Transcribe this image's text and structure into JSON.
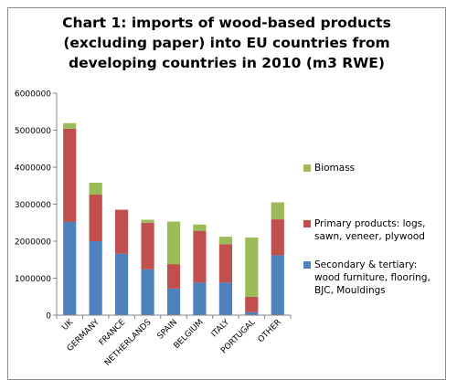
{
  "chart_data": {
    "type": "bar",
    "stacked": true,
    "title_lines": [
      "Chart 1: imports of wood-based products",
      "(excluding paper) into EU countries from",
      "developing countries in 2010 (m3 RWE)"
    ],
    "categories": [
      "UK",
      "GERMANY",
      "FRANCE",
      "NETHERLANDS",
      "SPAIN",
      "BELGIUM",
      "ITALY",
      "PORTUGAL",
      "OTHER"
    ],
    "series": [
      {
        "name_lines": [
          "Secondary & tertiary:",
          "wood furniture, flooring,",
          "BJC, Mouldings"
        ],
        "color": "#4f81bd",
        "values": [
          2520000,
          2000000,
          1660000,
          1240000,
          720000,
          880000,
          880000,
          80000,
          1620000
        ]
      },
      {
        "name_lines": [
          "Primary products: logs,",
          "sawn, veneer, plywood"
        ],
        "color": "#c0504d",
        "values": [
          2520000,
          1260000,
          1190000,
          1260000,
          660000,
          1400000,
          1040000,
          420000,
          970000
        ]
      },
      {
        "name_lines": [
          "Biomass"
        ],
        "color": "#9bbb59",
        "values": [
          150000,
          320000,
          0,
          80000,
          1150000,
          170000,
          200000,
          1600000,
          460000
        ]
      }
    ],
    "y_ticks": [
      "0",
      "1000000",
      "2000000",
      "3000000",
      "4000000",
      "5000000",
      "6000000"
    ],
    "ylim": [
      0,
      6000000
    ],
    "grid": false,
    "legend_position": "right"
  }
}
